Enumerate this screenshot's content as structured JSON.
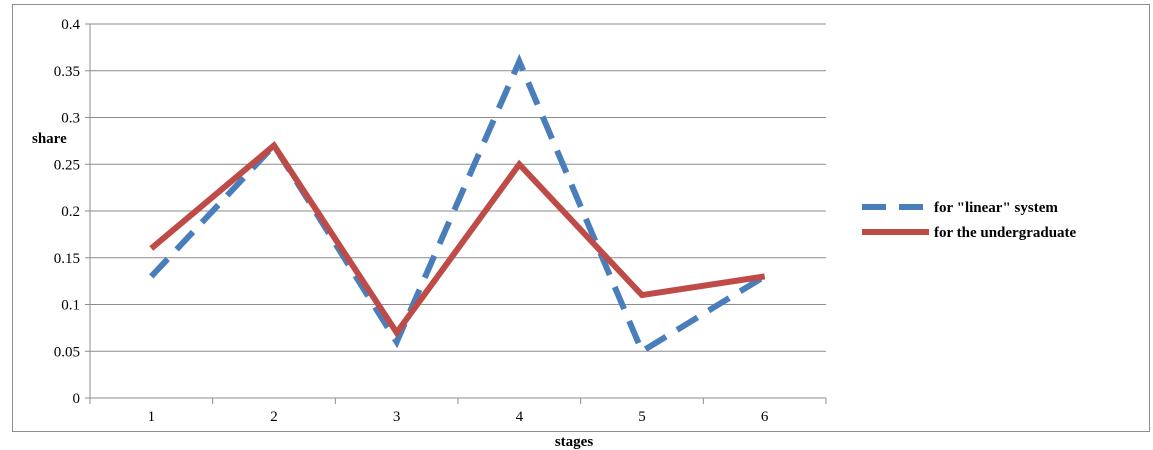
{
  "chart_data": {
    "type": "line",
    "title": "",
    "xlabel": "stages",
    "ylabel": "share",
    "categories": [
      "1",
      "2",
      "3",
      "4",
      "5",
      "6"
    ],
    "ylim": [
      0,
      0.4
    ],
    "yticks": [
      "0",
      "0.05",
      "0.1",
      "0.15",
      "0.2",
      "0.25",
      "0.3",
      "0.35",
      "0.4"
    ],
    "grid": "horizontal",
    "legend_position": "right",
    "series": [
      {
        "name": "for \"linear\" system",
        "values": [
          0.13,
          0.27,
          0.06,
          0.36,
          0.05,
          0.13
        ],
        "color": "#4a7ebb",
        "style": "dashed"
      },
      {
        "name": "for the undergraduate",
        "values": [
          0.16,
          0.27,
          0.07,
          0.25,
          0.11,
          0.13
        ],
        "color": "#be4b48",
        "style": "solid"
      }
    ]
  }
}
